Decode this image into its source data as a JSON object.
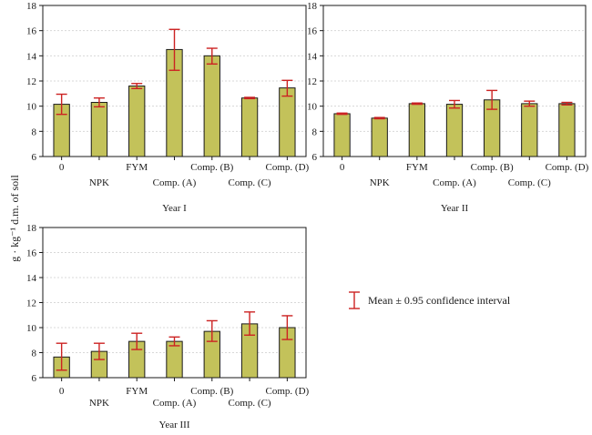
{
  "colors": {
    "bar_fill": "#c3c25a",
    "bar_stroke": "#1a1a1a",
    "error_bar": "#cc2222",
    "grid": "#d8d8d8",
    "frame": "#1a1a1a"
  },
  "ylabel": "g · kg⁻¹ d.m. of soil",
  "legend": {
    "text": "Mean ± 0.95 confidence interval",
    "icon": "error-bar-icon",
    "placement": "bottom-right"
  },
  "chart_data": [
    {
      "type": "bar",
      "title": "Year I",
      "categories": [
        "0",
        "NPK",
        "FYM",
        "Comp. (A)",
        "Comp. (B)",
        "Comp. (C)",
        "Comp. (D)"
      ],
      "values": [
        10.15,
        10.3,
        11.6,
        14.5,
        14.0,
        10.65,
        11.45
      ],
      "ci_low": [
        9.35,
        9.95,
        11.4,
        12.85,
        13.35,
        10.6,
        10.8
      ],
      "ci_high": [
        10.95,
        10.65,
        11.8,
        16.1,
        14.6,
        10.7,
        12.05
      ],
      "ylim": [
        6,
        18
      ],
      "yticks": [
        6,
        8,
        10,
        12,
        14,
        16,
        18
      ],
      "grid": true
    },
    {
      "type": "bar",
      "title": "Year II",
      "categories": [
        "0",
        "NPK",
        "FYM",
        "Comp. (A)",
        "Comp. (B)",
        "Comp. (C)",
        "Comp. (D)"
      ],
      "values": [
        9.4,
        9.05,
        10.2,
        10.15,
        10.5,
        10.2,
        10.2
      ],
      "ci_low": [
        9.35,
        9.0,
        10.15,
        9.85,
        9.75,
        10.0,
        10.1
      ],
      "ci_high": [
        9.45,
        9.1,
        10.25,
        10.45,
        11.25,
        10.4,
        10.3
      ],
      "ylim": [
        6,
        18
      ],
      "yticks": [
        6,
        8,
        10,
        12,
        14,
        16,
        18
      ],
      "grid": true
    },
    {
      "type": "bar",
      "title": "Year III",
      "categories": [
        "0",
        "NPK",
        "FYM",
        "Comp. (A)",
        "Comp. (B)",
        "Comp. (C)",
        "Comp. (D)"
      ],
      "values": [
        7.65,
        8.1,
        8.9,
        8.9,
        9.7,
        10.3,
        10.0
      ],
      "ci_low": [
        6.6,
        7.45,
        8.25,
        8.55,
        8.9,
        9.4,
        9.05
      ],
      "ci_high": [
        8.75,
        8.75,
        9.55,
        9.25,
        10.55,
        11.25,
        10.95
      ],
      "ylim": [
        6,
        18
      ],
      "yticks": [
        6,
        8,
        10,
        12,
        14,
        16,
        18
      ],
      "grid": true
    }
  ]
}
